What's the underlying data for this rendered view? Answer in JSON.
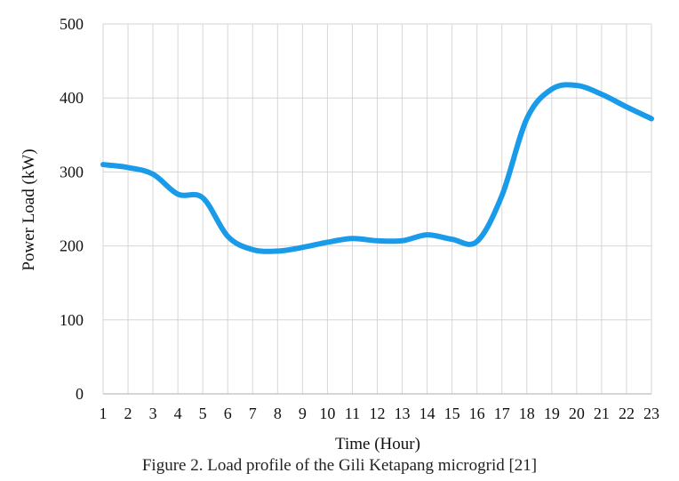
{
  "chart_data": {
    "type": "line",
    "x": [
      1,
      2,
      3,
      4,
      5,
      6,
      7,
      8,
      9,
      10,
      11,
      12,
      13,
      14,
      15,
      16,
      17,
      18,
      19,
      20,
      21,
      22,
      23
    ],
    "series": [
      {
        "values": [
          310,
          306,
          297,
          270,
          265,
          213,
          195,
          193,
          198,
          205,
          210,
          207,
          207,
          215,
          209,
          206,
          268,
          372,
          412,
          417,
          405,
          388,
          372
        ]
      }
    ],
    "xlabel": "Time (Hour)",
    "ylabel": "Power Load (kW)",
    "xlim": [
      1,
      23
    ],
    "ylim": [
      0,
      500
    ],
    "yticks": [
      0,
      100,
      200,
      300,
      400,
      500
    ],
    "grid": "vertical and horizontal",
    "line_color": "#1a9bea",
    "grid_color": "#d6d6d6"
  },
  "caption": "Figure 2. Load profile of the Gili Ketapang microgrid [21]"
}
